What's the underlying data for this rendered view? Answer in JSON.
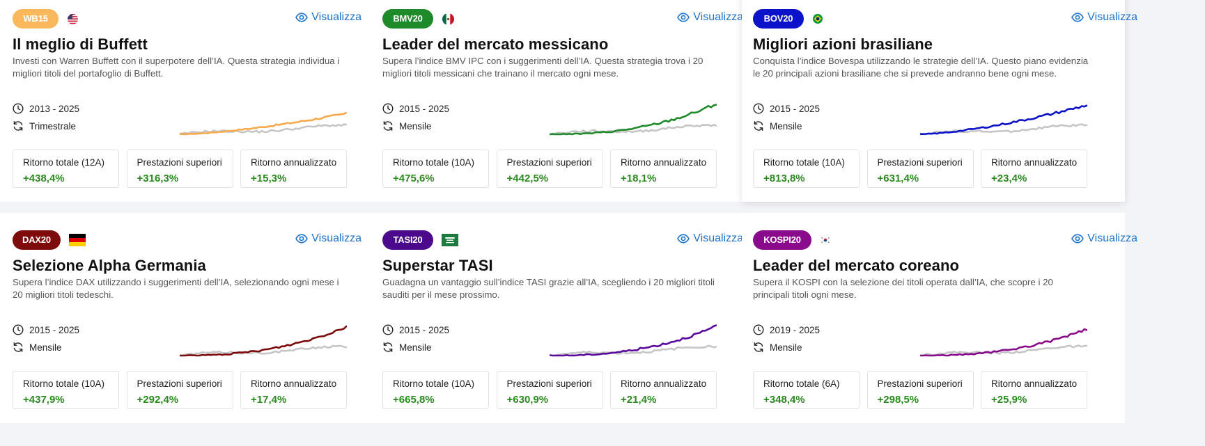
{
  "common": {
    "view_label": "Visualizza"
  },
  "cards": [
    {
      "badge": "WB15",
      "badge_color": "#f9b85c",
      "flag": "us-flag",
      "title": "Il meglio di Buffett",
      "desc": "Investi con Warren Buffett con il superpotere dell’IA. Questa strategia individua i migliori titoli del portafoglio di Buffett.",
      "period": "2013 - 2025",
      "frequency": "Trimestrale",
      "line_color": "#f7a94b",
      "stats": [
        {
          "label": "Ritorno totale (12A)",
          "value": "+438,4%"
        },
        {
          "label": "Prestazioni superiori",
          "value": "+316,3%"
        },
        {
          "label": "Ritorno annualizzato",
          "value": "+15,3%"
        }
      ]
    },
    {
      "badge": "BMV20",
      "badge_color": "#1f8a2a",
      "flag": "mx-flag",
      "title": "Leader del mercato messicano",
      "desc": "Supera l’indice BMV IPC con i suggerimenti dell’IA. Questa strategia trova i 20 migliori titoli messicani che trainano il mercato ogni mese.",
      "period": "2015 - 2025",
      "frequency": "Mensile",
      "line_color": "#1f8a2a",
      "stats": [
        {
          "label": "Ritorno totale (10A)",
          "value": "+475,6%"
        },
        {
          "label": "Prestazioni superiori",
          "value": "+442,5%"
        },
        {
          "label": "Ritorno annualizzato",
          "value": "+18,1%"
        }
      ]
    },
    {
      "badge": "BOV20",
      "badge_color": "#0c12c9",
      "flag": "br-flag",
      "title": "Migliori azioni brasiliane",
      "desc": "Conquista l’indice Bovespa utilizzando le strategie dell’IA. Questo piano evidenzia le 20 principali azioni brasiliane che si prevede andranno bene ogni mese.",
      "period": "2015 - 2025",
      "frequency": "Mensile",
      "line_color": "#0c12c9",
      "stats": [
        {
          "label": "Ritorno totale (10A)",
          "value": "+813,8%"
        },
        {
          "label": "Prestazioni superiori",
          "value": "+631,4%"
        },
        {
          "label": "Ritorno annualizzato",
          "value": "+23,4%"
        }
      ]
    },
    {
      "badge": "DAX20",
      "badge_color": "#7d0b0b",
      "flag": "de-flag",
      "title": "Selezione Alpha Germania",
      "desc": "Supera l’indice DAX utilizzando i suggerimenti dell’IA, selezionando ogni mese i 20 migliori titoli tedeschi.",
      "period": "2015 - 2025",
      "frequency": "Mensile",
      "line_color": "#7d0b0b",
      "stats": [
        {
          "label": "Ritorno totale (10A)",
          "value": "+437,9%"
        },
        {
          "label": "Prestazioni superiori",
          "value": "+292,4%"
        },
        {
          "label": "Ritorno annualizzato",
          "value": "+17,4%"
        }
      ]
    },
    {
      "badge": "TASI20",
      "badge_color": "#4b0a8c",
      "flag": "sa-flag",
      "title": "Superstar TASI",
      "desc": "Guadagna un vantaggio sull’indice TASI grazie all’IA, scegliendo i 20 migliori titoli sauditi per il mese prossimo.",
      "period": "2015 - 2025",
      "frequency": "Mensile",
      "line_color": "#5a0a9c",
      "stats": [
        {
          "label": "Ritorno totale (10A)",
          "value": "+665,8%"
        },
        {
          "label": "Prestazioni superiori",
          "value": "+630,9%"
        },
        {
          "label": "Ritorno annualizzato",
          "value": "+21,4%"
        }
      ]
    },
    {
      "badge": "KOSPI20",
      "badge_color": "#8a0a8c",
      "flag": "kr-flag",
      "title": "Leader del mercato coreano",
      "desc": "Supera il KOSPI con la selezione dei titoli operata dall’IA, che scopre i 20 principali titoli ogni mese.",
      "period": "2019 - 2025",
      "frequency": "Mensile",
      "line_color": "#8a0a8c",
      "stats": [
        {
          "label": "Ritorno totale (6A)",
          "value": "+348,4%"
        },
        {
          "label": "Prestazioni superiori",
          "value": "+298,5%"
        },
        {
          "label": "Ritorno annualizzato",
          "value": "+25,9%"
        }
      ]
    }
  ]
}
